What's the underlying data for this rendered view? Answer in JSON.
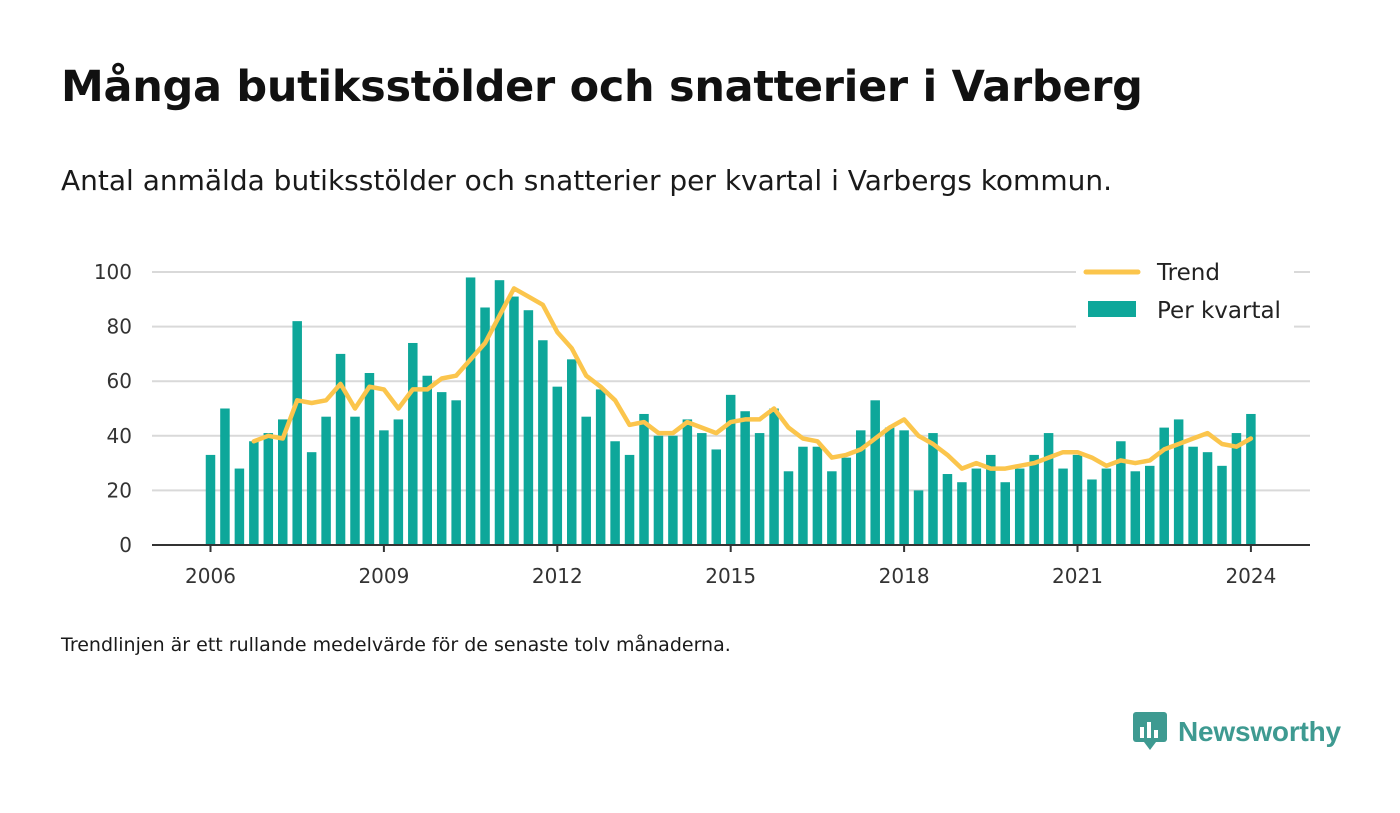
{
  "title": "Många butiksstölder och snatterier i Varberg",
  "subtitle": "Antal anmälda butiksstölder och snatterier per kvartal i Varbergs kommun.",
  "footnote": "Trendlinjen är ett rullande medelvärde för de senaste tolv månaderna.",
  "brand": {
    "name": "Newsworthy",
    "icon": "newsworthy-logo-icon"
  },
  "colors": {
    "bars": "#0ea79a",
    "trend": "#fbc54c",
    "grid": "#d9d9d9",
    "axis": "#333333",
    "brand": "#3e9a91"
  },
  "chart_data": {
    "type": "bar",
    "x_unit": "quarter",
    "x_start": "2006 Q1",
    "series": [
      {
        "name": "Per kvartal",
        "type": "bar",
        "values": [
          33,
          50,
          28,
          38,
          41,
          46,
          82,
          34,
          47,
          70,
          47,
          63,
          42,
          46,
          74,
          62,
          56,
          53,
          98,
          87,
          97,
          91,
          86,
          75,
          58,
          68,
          47,
          57,
          38,
          33,
          48,
          40,
          40,
          46,
          41,
          35,
          55,
          49,
          41,
          50,
          27,
          36,
          36,
          27,
          32,
          42,
          53,
          43,
          42,
          20,
          41,
          26,
          23,
          28,
          33,
          23,
          28,
          33,
          41,
          28,
          33,
          24,
          28,
          38,
          27,
          29,
          43,
          46,
          36,
          34,
          29,
          41,
          48
        ]
      },
      {
        "name": "Trend",
        "type": "line",
        "start_index": 3,
        "values": [
          38,
          40,
          39,
          53,
          52,
          53,
          59,
          50,
          58,
          57,
          50,
          57,
          57,
          61,
          62,
          68,
          74,
          84,
          94,
          91,
          88,
          78,
          72,
          62,
          58,
          53,
          44,
          45,
          41,
          41,
          45,
          43,
          41,
          45,
          46,
          46,
          50,
          43,
          39,
          38,
          32,
          33,
          35,
          39,
          43,
          46,
          40,
          37,
          33,
          28,
          30,
          28,
          28,
          29,
          30,
          32,
          34,
          34,
          32,
          29,
          31,
          30,
          31,
          35,
          37,
          39,
          41,
          37,
          36,
          39
        ]
      }
    ],
    "xticks": [
      "2006",
      "2009",
      "2012",
      "2015",
      "2018",
      "2021",
      "2024"
    ],
    "yticks": [
      0,
      20,
      40,
      60,
      80,
      100
    ],
    "ylim": [
      0,
      100
    ],
    "grid": "horizontal",
    "legend": {
      "position": "top-right",
      "entries": [
        "Trend",
        "Per kvartal"
      ]
    },
    "title": "",
    "xlabel": "",
    "ylabel": ""
  }
}
